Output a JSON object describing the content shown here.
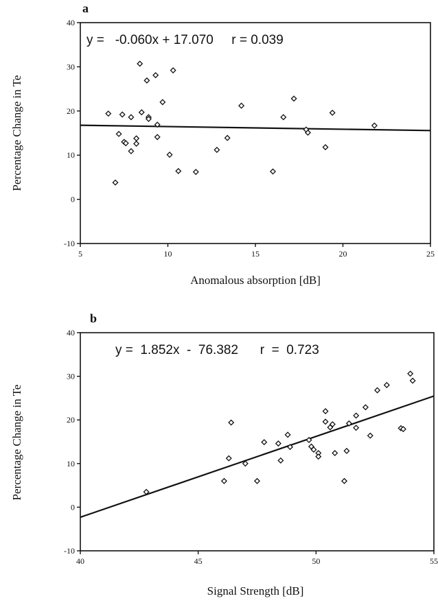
{
  "chart_data": [
    {
      "type": "scatter",
      "panel": "a",
      "equation": "y =   -0.060x + 17.070     r = 0.039",
      "xlabel": "Anomalous absorption [dB]",
      "ylabel": "Percentage Change in Te",
      "xlim": [
        5,
        25
      ],
      "ylim": [
        -10,
        40
      ],
      "xticks": [
        5,
        10,
        15,
        20,
        25
      ],
      "yticks": [
        -10,
        0,
        10,
        20,
        30,
        40
      ],
      "xtick_labels": [
        "5",
        "10",
        "15",
        "20",
        "25"
      ],
      "ytick_labels": [
        "-10",
        "0",
        "10",
        "20",
        "30",
        "40"
      ],
      "fit": {
        "slope": -0.06,
        "intercept": 17.07
      },
      "points": [
        {
          "x": 6.6,
          "y": 19.4
        },
        {
          "x": 7.0,
          "y": 3.8
        },
        {
          "x": 7.2,
          "y": 14.8
        },
        {
          "x": 7.4,
          "y": 19.2
        },
        {
          "x": 7.5,
          "y": 13.0
        },
        {
          "x": 7.6,
          "y": 12.7
        },
        {
          "x": 7.9,
          "y": 18.6
        },
        {
          "x": 7.9,
          "y": 10.9
        },
        {
          "x": 8.2,
          "y": 12.6
        },
        {
          "x": 8.2,
          "y": 13.8
        },
        {
          "x": 8.4,
          "y": 30.7
        },
        {
          "x": 8.5,
          "y": 19.7
        },
        {
          "x": 8.8,
          "y": 26.9
        },
        {
          "x": 8.9,
          "y": 18.6
        },
        {
          "x": 8.9,
          "y": 18.2
        },
        {
          "x": 9.3,
          "y": 28.1
        },
        {
          "x": 9.4,
          "y": 16.9
        },
        {
          "x": 9.4,
          "y": 14.1
        },
        {
          "x": 9.7,
          "y": 22.0
        },
        {
          "x": 10.1,
          "y": 10.1
        },
        {
          "x": 10.3,
          "y": 29.2
        },
        {
          "x": 10.6,
          "y": 6.4
        },
        {
          "x": 11.6,
          "y": 6.2
        },
        {
          "x": 12.8,
          "y": 11.2
        },
        {
          "x": 13.4,
          "y": 13.9
        },
        {
          "x": 14.2,
          "y": 21.2
        },
        {
          "x": 16.0,
          "y": 6.3
        },
        {
          "x": 16.6,
          "y": 18.6
        },
        {
          "x": 17.2,
          "y": 22.8
        },
        {
          "x": 17.9,
          "y": 15.8
        },
        {
          "x": 18.0,
          "y": 15.1
        },
        {
          "x": 19.0,
          "y": 11.8
        },
        {
          "x": 19.4,
          "y": 19.6
        },
        {
          "x": 21.8,
          "y": 16.7
        }
      ]
    },
    {
      "type": "scatter",
      "panel": "b",
      "equation": "y =  1.852x  -  76.382      r  =  0.723",
      "xlabel": "Signal Strength [dB]",
      "ylabel": "Percentage Change in Te",
      "xlim": [
        40,
        55
      ],
      "ylim": [
        -10,
        40
      ],
      "xticks": [
        40,
        45,
        50,
        55
      ],
      "yticks": [
        -10,
        0,
        10,
        20,
        30,
        40
      ],
      "xtick_labels": [
        "40",
        "45",
        "50",
        "55"
      ],
      "ytick_labels": [
        "-10",
        "0",
        "10",
        "20",
        "30",
        "40"
      ],
      "fit": {
        "slope": 1.852,
        "intercept": -76.382
      },
      "points": [
        {
          "x": 42.8,
          "y": 3.5
        },
        {
          "x": 46.1,
          "y": 6.0
        },
        {
          "x": 46.3,
          "y": 11.2
        },
        {
          "x": 46.4,
          "y": 19.4
        },
        {
          "x": 47.0,
          "y": 10.0
        },
        {
          "x": 47.5,
          "y": 6.0
        },
        {
          "x": 47.8,
          "y": 14.9
        },
        {
          "x": 48.4,
          "y": 14.6
        },
        {
          "x": 48.5,
          "y": 10.7
        },
        {
          "x": 48.8,
          "y": 16.6
        },
        {
          "x": 48.9,
          "y": 13.8
        },
        {
          "x": 49.7,
          "y": 15.4
        },
        {
          "x": 49.8,
          "y": 13.9
        },
        {
          "x": 49.9,
          "y": 13.2
        },
        {
          "x": 50.1,
          "y": 12.4
        },
        {
          "x": 50.1,
          "y": 11.6
        },
        {
          "x": 50.4,
          "y": 22.0
        },
        {
          "x": 50.4,
          "y": 19.6
        },
        {
          "x": 50.6,
          "y": 18.3
        },
        {
          "x": 50.7,
          "y": 19.0
        },
        {
          "x": 50.8,
          "y": 12.4
        },
        {
          "x": 51.2,
          "y": 6.0
        },
        {
          "x": 51.3,
          "y": 12.9
        },
        {
          "x": 51.4,
          "y": 19.2
        },
        {
          "x": 51.7,
          "y": 21.0
        },
        {
          "x": 51.7,
          "y": 18.2
        },
        {
          "x": 52.1,
          "y": 22.9
        },
        {
          "x": 52.3,
          "y": 16.4
        },
        {
          "x": 52.6,
          "y": 26.8
        },
        {
          "x": 53.0,
          "y": 28.0
        },
        {
          "x": 53.6,
          "y": 18.1
        },
        {
          "x": 53.7,
          "y": 17.9
        },
        {
          "x": 54.0,
          "y": 30.6
        },
        {
          "x": 54.1,
          "y": 29.0
        }
      ]
    }
  ]
}
